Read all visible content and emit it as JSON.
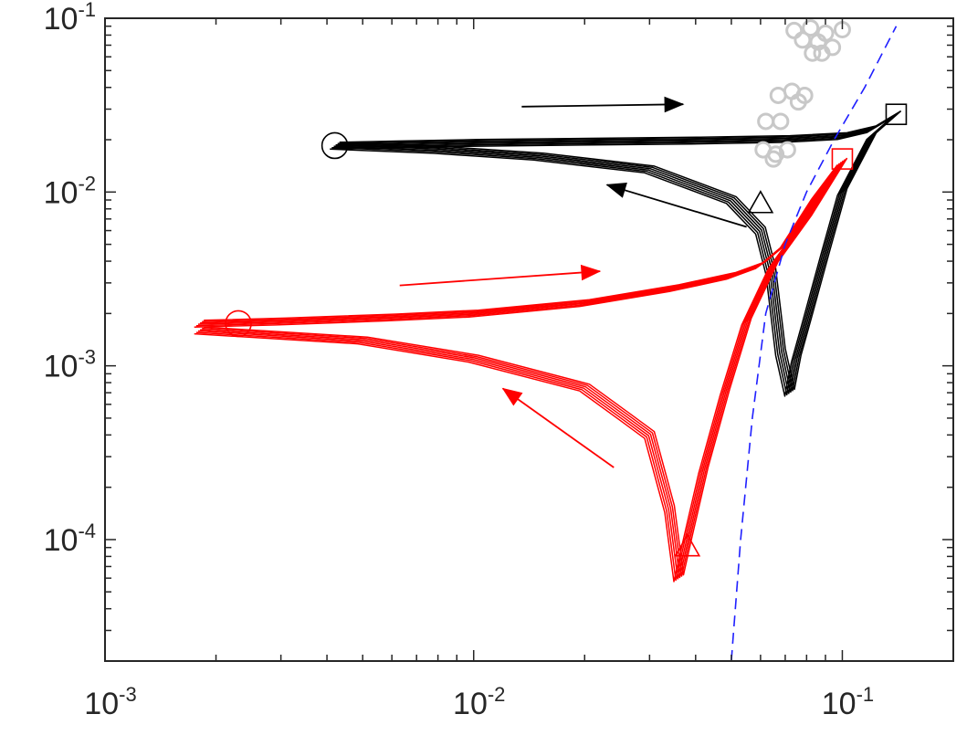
{
  "chart_data": {
    "type": "line",
    "x_scale": "log",
    "y_scale": "log",
    "xlim": [
      0.001,
      0.2
    ],
    "ylim": [
      2e-05,
      0.1
    ],
    "grid": false,
    "x_ticks": [
      {
        "value": 0.001,
        "base": "10",
        "exp": "-3"
      },
      {
        "value": 0.01,
        "base": "10",
        "exp": "-2"
      },
      {
        "value": 0.1,
        "base": "10",
        "exp": "-1"
      }
    ],
    "y_ticks": [
      {
        "value": 0.0001,
        "base": "10",
        "exp": "-4"
      },
      {
        "value": 0.001,
        "base": "10",
        "exp": "-3"
      },
      {
        "value": 0.01,
        "base": "10",
        "exp": "-2"
      },
      {
        "value": 0.1,
        "base": "10",
        "exp": "-1"
      }
    ],
    "colors": {
      "black_series": "#000000",
      "red_series": "#ff0000",
      "reference_line": "#1f1fff",
      "gray_markers": "#c8c8c8",
      "axes": "#262626"
    },
    "series": [
      {
        "color_key": "black_series",
        "marker": "lines",
        "x": [
          0.0042,
          0.006,
          0.01,
          0.02,
          0.04,
          0.07,
          0.1,
          0.12,
          0.14
        ],
        "y": [
          0.0185,
          0.0188,
          0.0192,
          0.0195,
          0.0198,
          0.0202,
          0.021,
          0.023,
          0.028
        ]
      },
      {
        "color_key": "black_series",
        "marker": "lines",
        "x": [
          0.14,
          0.12,
          0.1,
          0.09,
          0.08,
          0.075,
          0.072,
          0.068,
          0.064,
          0.06,
          0.05,
          0.03,
          0.015,
          0.008,
          0.0042
        ],
        "y": [
          0.028,
          0.021,
          0.01,
          0.0045,
          0.0018,
          0.0011,
          0.0007,
          0.0012,
          0.0035,
          0.006,
          0.009,
          0.0135,
          0.016,
          0.0175,
          0.0185
        ]
      },
      {
        "color_key": "red_series",
        "marker": "lines",
        "x": [
          0.0018,
          0.003,
          0.006,
          0.01,
          0.02,
          0.035,
          0.05,
          0.06,
          0.07,
          0.085,
          0.1
        ],
        "y": [
          0.00175,
          0.0018,
          0.0019,
          0.002,
          0.0023,
          0.0028,
          0.0033,
          0.0038,
          0.005,
          0.0095,
          0.015
        ]
      },
      {
        "color_key": "red_series",
        "marker": "lines",
        "x": [
          0.1,
          0.08,
          0.065,
          0.055,
          0.048,
          0.042,
          0.038,
          0.036,
          0.034,
          0.03,
          0.026,
          0.02,
          0.01,
          0.005,
          0.0018
        ],
        "y": [
          0.015,
          0.007,
          0.0038,
          0.0018,
          0.0007,
          0.00025,
          0.0001,
          6e-05,
          0.00015,
          0.0004,
          0.0005,
          0.00075,
          0.0011,
          0.0014,
          0.0016
        ]
      },
      {
        "color_key": "reference_line",
        "marker": "dash",
        "x": [
          0.05,
          0.053,
          0.057,
          0.062,
          0.07,
          0.08,
          0.095,
          0.115,
          0.14
        ],
        "y": [
          2e-05,
          0.0001,
          0.0005,
          0.002,
          0.005,
          0.01,
          0.02,
          0.04,
          0.09
        ]
      },
      {
        "color_key": "gray_markers",
        "marker": "circle",
        "x": [
          0.074,
          0.082,
          0.09,
          0.1,
          0.078,
          0.086,
          0.094,
          0.083,
          0.088,
          0.067,
          0.073,
          0.079,
          0.076,
          0.062,
          0.068,
          0.061,
          0.066,
          0.071,
          0.065
        ],
        "y": [
          0.085,
          0.088,
          0.082,
          0.086,
          0.075,
          0.073,
          0.068,
          0.063,
          0.063,
          0.036,
          0.038,
          0.036,
          0.033,
          0.0255,
          0.0255,
          0.0175,
          0.0165,
          0.0175,
          0.0155
        ]
      }
    ],
    "markers": [
      {
        "shape": "circle",
        "color_key": "black_series",
        "x": 0.0042,
        "y": 0.0185
      },
      {
        "shape": "square",
        "color_key": "black_series",
        "x": 0.14,
        "y": 0.028
      },
      {
        "shape": "triangle",
        "color_key": "black_series",
        "x": 0.06,
        "y": 0.0085
      },
      {
        "shape": "circle",
        "color_key": "red_series",
        "x": 0.0023,
        "y": 0.00175
      },
      {
        "shape": "square",
        "color_key": "red_series",
        "x": 0.1,
        "y": 0.0155
      },
      {
        "shape": "triangle",
        "color_key": "red_series",
        "x": 0.038,
        "y": 9e-05
      }
    ],
    "annotations": [
      {
        "type": "arrow",
        "color_key": "black_series",
        "from": [
          0.0135,
          0.031
        ],
        "to": [
          0.037,
          0.032
        ]
      },
      {
        "type": "arrow",
        "color_key": "black_series",
        "from": [
          0.055,
          0.0063
        ],
        "to": [
          0.023,
          0.011
        ]
      },
      {
        "type": "arrow",
        "color_key": "red_series",
        "from": [
          0.0063,
          0.0029
        ],
        "to": [
          0.022,
          0.0035
        ]
      },
      {
        "type": "arrow",
        "color_key": "red_series",
        "from": [
          0.024,
          0.00026
        ],
        "to": [
          0.012,
          0.00074
        ]
      }
    ]
  }
}
